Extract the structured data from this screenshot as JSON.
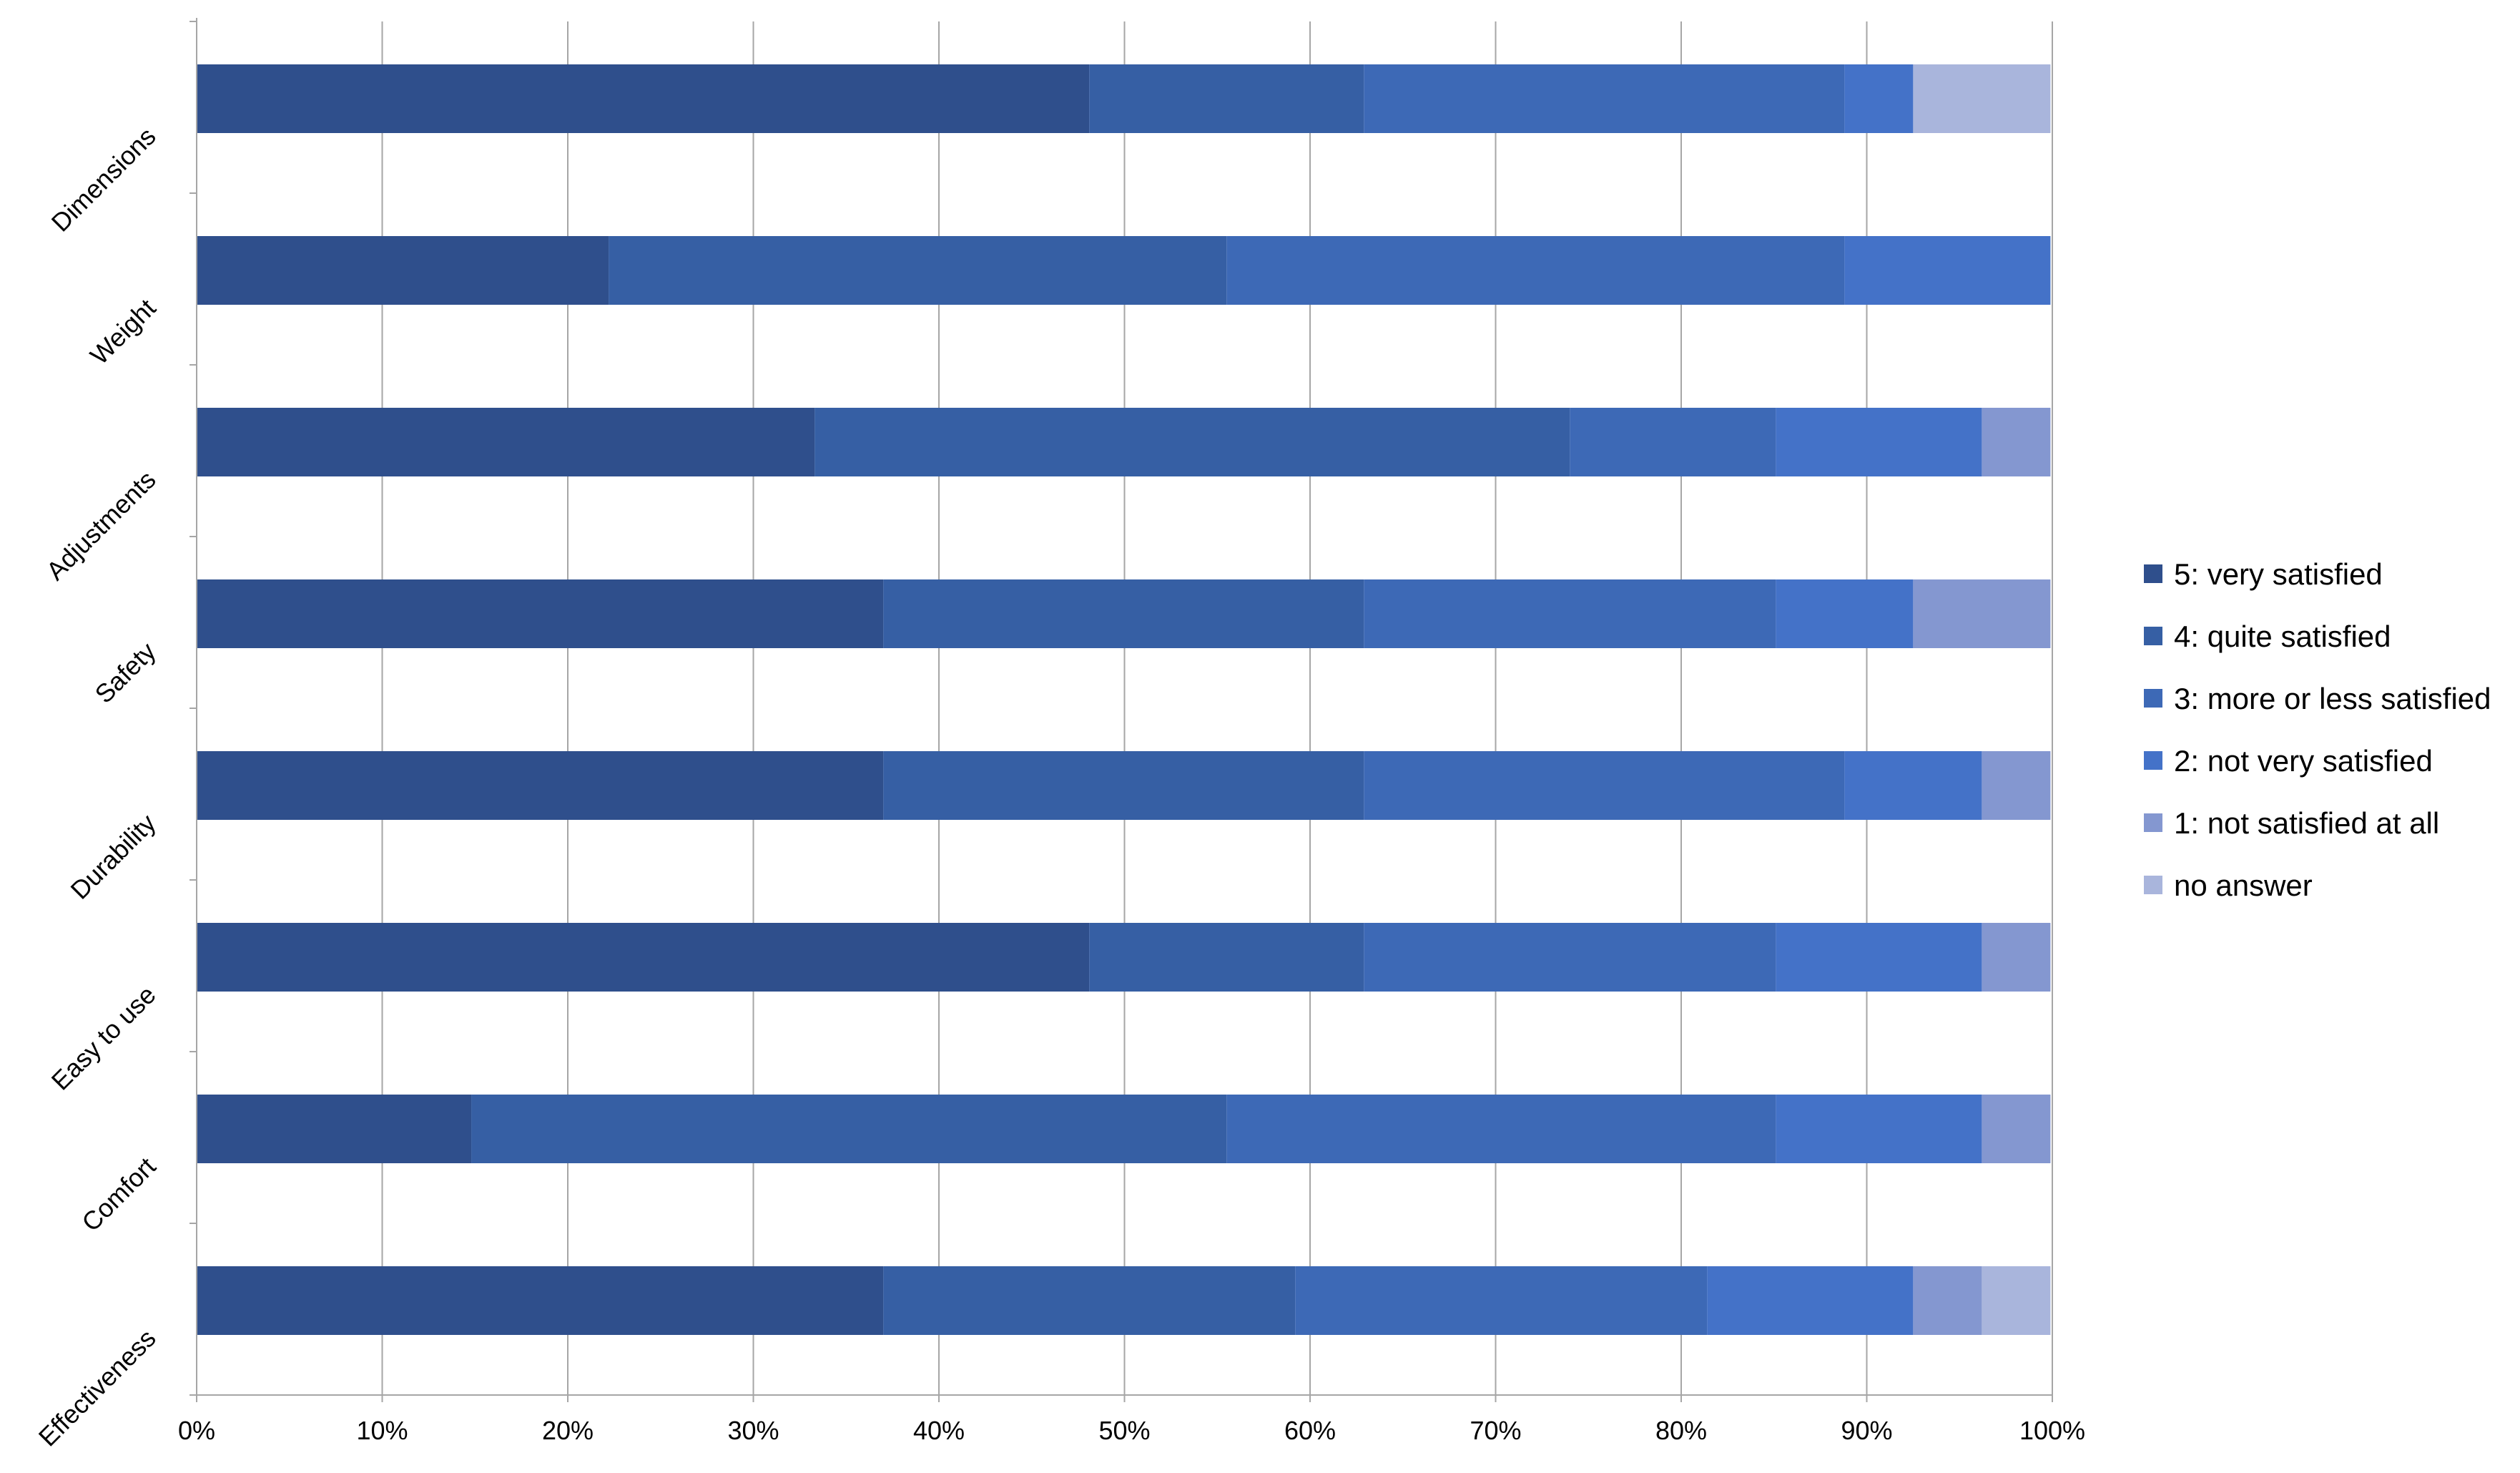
{
  "chart_data": {
    "type": "bar",
    "orientation": "horizontal",
    "stacked": "percent",
    "categories": [
      "Dimensions",
      "Weight",
      "Adjustments",
      "Safety",
      "Durability",
      "Easy to use",
      "Comfort",
      "Effectiveness"
    ],
    "series": [
      {
        "name": "5: very satisfied",
        "color": "#2f4f8c",
        "values": [
          48.1,
          22.2,
          33.3,
          37.0,
          37.0,
          48.1,
          14.8,
          37.0
        ]
      },
      {
        "name": "4: quite satisfied",
        "color": "#365fa4",
        "values": [
          14.8,
          33.3,
          40.7,
          25.9,
          25.9,
          14.8,
          40.7,
          22.2
        ]
      },
      {
        "name": "3: more or less satisfied",
        "color": "#3d69b6",
        "values": [
          25.9,
          33.3,
          11.1,
          22.2,
          25.9,
          22.2,
          29.6,
          22.2
        ]
      },
      {
        "name": "2: not very satisfied",
        "color": "#4472c8",
        "values": [
          3.7,
          11.1,
          11.1,
          7.4,
          7.4,
          11.1,
          11.1,
          11.1
        ]
      },
      {
        "name": "1: not satisfied at all",
        "color": "#8497d0",
        "values": [
          0.0,
          0.0,
          3.7,
          7.4,
          3.7,
          3.7,
          3.7,
          3.7
        ]
      },
      {
        "name": "no answer",
        "color": "#a9b5dc",
        "values": [
          7.4,
          0.0,
          0.0,
          0.0,
          0.0,
          0.0,
          0.0,
          3.7
        ]
      }
    ],
    "x_ticks": [
      "0%",
      "10%",
      "20%",
      "30%",
      "40%",
      "50%",
      "60%",
      "70%",
      "80%",
      "90%",
      "100%"
    ],
    "xlim": [
      0,
      100
    ],
    "grid": true,
    "legend_position": "right"
  }
}
